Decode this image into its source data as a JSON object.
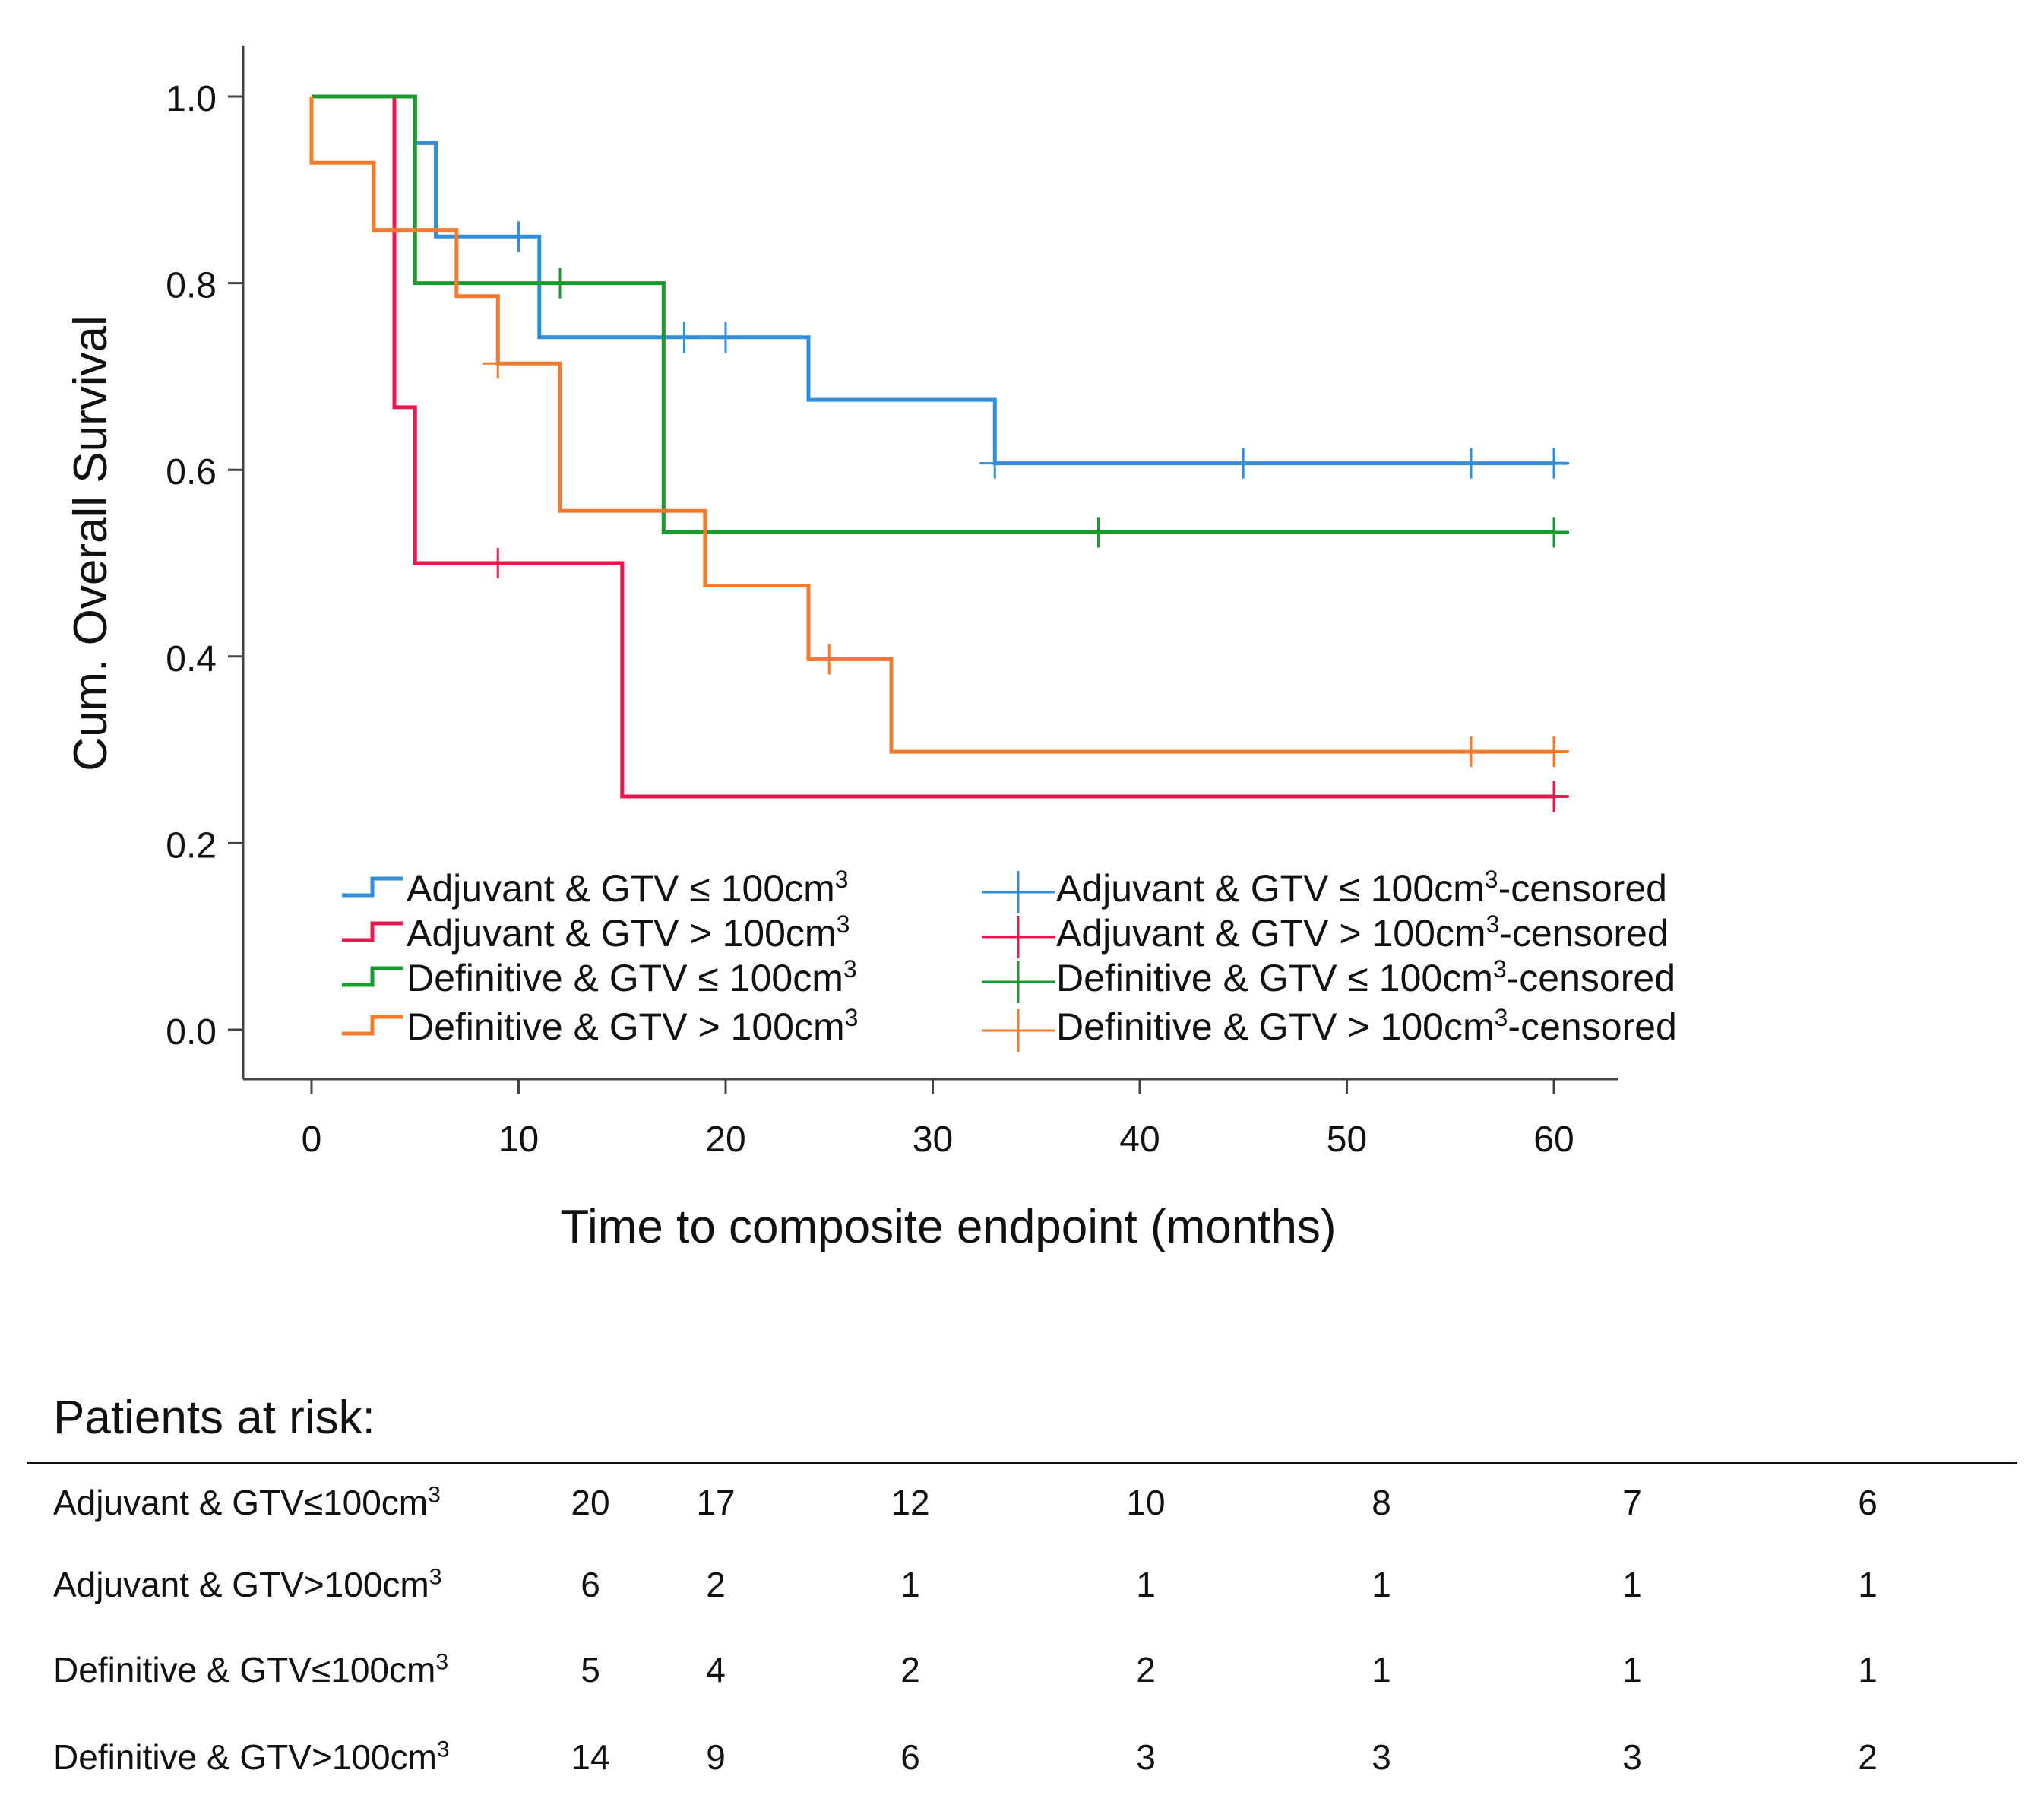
{
  "chart_data": {
    "type": "line",
    "title": "",
    "xlabel": "Time to composite endpoint (months)",
    "ylabel": "Cum. Overall Survival",
    "xlim": [
      0,
      60
    ],
    "ylim": [
      0,
      1.0
    ],
    "xticks": [
      0,
      10,
      20,
      30,
      40,
      50,
      60
    ],
    "yticks": [
      0.0,
      0.2,
      0.4,
      0.6,
      0.8,
      1.0
    ],
    "xtick_labels": [
      "0",
      "10",
      "20",
      "30",
      "40",
      "50",
      "60"
    ],
    "ytick_labels": [
      "0.0",
      "0.2",
      "0.4",
      "0.6",
      "0.8",
      "1.0"
    ],
    "grid": false,
    "legend_position": "bottom-inside",
    "series": [
      {
        "name": "Adjuvant & GTV ≤ 100cm",
        "legend_base": "Adjuvant & GTV ≤ 100cm",
        "color": "#2f8fdc",
        "steps": [
          [
            0,
            1.0
          ],
          [
            5,
            1.0
          ],
          [
            5,
            0.95
          ],
          [
            6,
            0.95
          ],
          [
            6,
            0.85
          ],
          [
            11,
            0.85
          ],
          [
            11,
            0.742
          ],
          [
            24,
            0.742
          ],
          [
            24,
            0.675
          ],
          [
            33,
            0.675
          ],
          [
            33,
            0.607
          ],
          [
            60,
            0.607
          ]
        ],
        "censored": [
          [
            10,
            0.85
          ],
          [
            18,
            0.742
          ],
          [
            20,
            0.742
          ],
          [
            33,
            0.607
          ],
          [
            45,
            0.607
          ],
          [
            56,
            0.607
          ],
          [
            60,
            0.607
          ]
        ]
      },
      {
        "name": "Adjuvant & GTV > 100cm",
        "legend_base": "Adjuvant & GTV > 100cm",
        "color": "#e8194f",
        "steps": [
          [
            0,
            1.0
          ],
          [
            4,
            1.0
          ],
          [
            4,
            0.667
          ],
          [
            5,
            0.667
          ],
          [
            5,
            0.5
          ],
          [
            15,
            0.5
          ],
          [
            15,
            0.25
          ],
          [
            60,
            0.25
          ]
        ],
        "censored": [
          [
            9,
            0.5
          ],
          [
            60,
            0.25
          ]
        ]
      },
      {
        "name": "Definitive & GTV ≤ 100cm",
        "legend_base": "Definitive & GTV ≤ 100cm",
        "color": "#189a2c",
        "steps": [
          [
            0,
            1.0
          ],
          [
            5,
            1.0
          ],
          [
            5,
            0.8
          ],
          [
            17,
            0.8
          ],
          [
            17,
            0.533
          ],
          [
            60,
            0.533
          ]
        ],
        "censored": [
          [
            12,
            0.8
          ],
          [
            38,
            0.533
          ],
          [
            60,
            0.533
          ]
        ]
      },
      {
        "name": "Definitive & GTV > 100cm",
        "legend_base": "Definitive & GTV > 100cm",
        "color": "#f47a2e",
        "steps": [
          [
            0,
            1.0
          ],
          [
            0,
            0.929
          ],
          [
            3,
            0.929
          ],
          [
            3,
            0.857
          ],
          [
            7,
            0.857
          ],
          [
            7,
            0.786
          ],
          [
            9,
            0.786
          ],
          [
            9,
            0.714
          ],
          [
            12,
            0.714
          ],
          [
            12,
            0.556
          ],
          [
            19,
            0.556
          ],
          [
            19,
            0.476
          ],
          [
            24,
            0.476
          ],
          [
            24,
            0.397
          ],
          [
            28,
            0.397
          ],
          [
            28,
            0.298
          ],
          [
            60,
            0.298
          ]
        ],
        "censored": [
          [
            9,
            0.714
          ],
          [
            25,
            0.397
          ],
          [
            56,
            0.298
          ],
          [
            60,
            0.298
          ]
        ]
      }
    ],
    "legend": {
      "superscript": "3",
      "censored_suffix": "-censored"
    }
  },
  "risk_table": {
    "title": "Patients at risk:",
    "rows": [
      {
        "label": "Adjuvant & GTV≤100cm",
        "sup": "3",
        "values": [
          "20",
          "17",
          "12",
          "10",
          "8",
          "7",
          "6"
        ]
      },
      {
        "label": "Adjuvant & GTV>100cm",
        "sup": "3",
        "values": [
          "6",
          "2",
          "1",
          "1",
          "1",
          "1",
          "1"
        ]
      },
      {
        "label": "Definitive & GTV≤100cm",
        "sup": "3",
        "values": [
          "5",
          "4",
          "2",
          "2",
          "1",
          "1",
          "1"
        ]
      },
      {
        "label": "Definitive & GTV>100cm",
        "sup": "3",
        "values": [
          "14",
          "9",
          "6",
          "3",
          "3",
          "3",
          "2"
        ]
      }
    ]
  }
}
